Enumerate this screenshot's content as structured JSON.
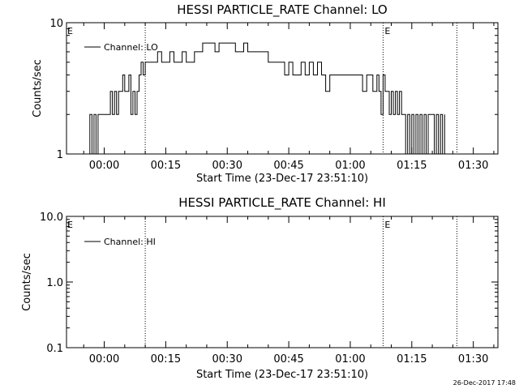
{
  "footer": {
    "timestamp": "26-Dec-2017 17:48"
  },
  "chart_data": [
    {
      "type": "line",
      "title": "HESSI PARTICLE_RATE Channel: LO",
      "xlabel": "Start Time (23-Dec-17 23:51:10)",
      "ylabel": "Counts/sec",
      "yscale": "log",
      "xlim": [
        -9.2,
        96
      ],
      "ylim": [
        1,
        10
      ],
      "x_tick_values": [
        0,
        15,
        30,
        45,
        60,
        75,
        90
      ],
      "x_tick_labels": [
        "00:00",
        "00:15",
        "00:30",
        "00:45",
        "01:00",
        "01:15",
        "01:30"
      ],
      "y_tick_values": [
        1,
        10
      ],
      "y_tick_labels": [
        "1",
        "10"
      ],
      "legend": {
        "label": "Channel: LO",
        "position": "top-left"
      },
      "markers": [
        {
          "x": 10,
          "label": ""
        },
        {
          "x": 68,
          "label": "E"
        },
        {
          "x": 86,
          "label": ""
        }
      ],
      "left_marker_label": "E",
      "series": [
        {
          "x": [
            -4,
            -3.5,
            -3,
            -2.5,
            -2,
            -1.5,
            -1,
            -0.5,
            0,
            0.5,
            1,
            1.5,
            2,
            2.5,
            3,
            3.5,
            4,
            4.5,
            5,
            5.5,
            6,
            6.5,
            7,
            7.5,
            8,
            8.5,
            9,
            9.5,
            10,
            10.5,
            11,
            12,
            13,
            14,
            15,
            16,
            17,
            18,
            19,
            20,
            21,
            22,
            23,
            24,
            25,
            26,
            27,
            28,
            29,
            30,
            31,
            32,
            33,
            34,
            35,
            36,
            37,
            38,
            39,
            40,
            41,
            42,
            43,
            44,
            45,
            46,
            47,
            48,
            49,
            50,
            51,
            52,
            53,
            54,
            55,
            56,
            57,
            58,
            59,
            60,
            61,
            62,
            63,
            64,
            65,
            65.5,
            66,
            66.5,
            67,
            67.5,
            68,
            68.5,
            69,
            69.5,
            70,
            70.5,
            71,
            71.5,
            72,
            72.5,
            73,
            73.5,
            74,
            74.5,
            75,
            75.5,
            76,
            76.5,
            77,
            77.5,
            78,
            78.5,
            79,
            79.5,
            80,
            80.5,
            81,
            81.5,
            82,
            82.5,
            83
          ],
          "y": [
            1,
            2,
            1,
            2,
            1,
            2,
            2,
            2,
            2,
            2,
            2,
            3,
            2,
            3,
            2,
            3,
            3,
            4,
            3,
            3,
            4,
            2,
            3,
            2,
            3,
            4,
            5,
            4,
            5,
            5,
            5,
            5,
            6,
            5,
            5,
            6,
            5,
            5,
            6,
            5,
            5,
            6,
            6,
            7,
            7,
            7,
            6,
            7,
            7,
            7,
            7,
            6,
            6,
            7,
            6,
            6,
            6,
            6,
            6,
            5,
            5,
            5,
            5,
            4,
            5,
            4,
            4,
            5,
            4,
            5,
            4,
            5,
            4,
            3,
            4,
            4,
            4,
            4,
            4,
            4,
            4,
            4,
            3,
            4,
            4,
            3,
            3,
            4,
            3,
            2,
            4,
            3,
            3,
            2,
            3,
            2,
            3,
            2,
            3,
            2,
            2,
            1,
            2,
            1,
            2,
            1,
            2,
            1,
            2,
            1,
            2,
            1,
            2,
            2,
            2,
            1,
            2,
            1,
            2,
            1,
            2
          ]
        }
      ]
    },
    {
      "type": "line",
      "title": "HESSI PARTICLE_RATE Channel: HI",
      "xlabel": "Start Time (23-Dec-17 23:51:10)",
      "ylabel": "Counts/sec",
      "yscale": "log",
      "xlim": [
        -9.2,
        96
      ],
      "ylim": [
        0.1,
        10
      ],
      "x_tick_values": [
        0,
        15,
        30,
        45,
        60,
        75,
        90
      ],
      "x_tick_labels": [
        "00:00",
        "00:15",
        "00:30",
        "00:45",
        "01:00",
        "01:15",
        "01:30"
      ],
      "y_tick_values": [
        0.1,
        1,
        10
      ],
      "y_tick_labels": [
        "0.1",
        "1.0",
        "10.0"
      ],
      "legend": {
        "label": "Channel: HI",
        "position": "top-left"
      },
      "markers": [
        {
          "x": 10,
          "label": ""
        },
        {
          "x": 68,
          "label": "E"
        },
        {
          "x": 86,
          "label": ""
        }
      ],
      "left_marker_label": "E",
      "series": [
        {
          "x": [],
          "y": []
        }
      ]
    }
  ]
}
